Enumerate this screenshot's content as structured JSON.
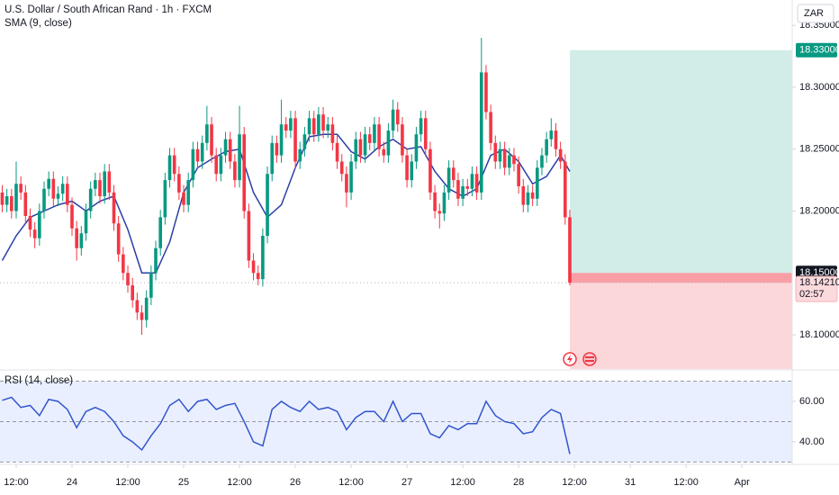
{
  "chart_data": [
    {
      "type": "candlestick",
      "title": "U.S. Dollar / South African Rand · 1h · FXCM",
      "currency": "ZAR",
      "up_color": "#089981",
      "down_color": "#f23645",
      "xlim": [
        -3.48,
        166.8
      ],
      "ylim": [
        18.0724,
        18.3705
      ],
      "yticks": [
        {
          "value": 18.35,
          "label": "18.35000"
        },
        {
          "value": 18.3,
          "label": "18.30000"
        },
        {
          "value": 18.25,
          "label": "18.25000"
        },
        {
          "value": 18.2,
          "label": "18.20000"
        },
        {
          "value": 18.1,
          "label": "18.10000"
        }
      ],
      "candles": {
        "x": [
          -3,
          -2,
          -1,
          0,
          1,
          2,
          3,
          4,
          5,
          6,
          7,
          8,
          9,
          10,
          11,
          12,
          13,
          14,
          15,
          16,
          17,
          18,
          19,
          20,
          21,
          22,
          23,
          24,
          25,
          26,
          27,
          28,
          29,
          30,
          31,
          32,
          33,
          34,
          35,
          36,
          37,
          38,
          39,
          40,
          41,
          42,
          43,
          44,
          45,
          46,
          47,
          48,
          49,
          50,
          51,
          52,
          53,
          54,
          55,
          56,
          57,
          58,
          59,
          60,
          61,
          62,
          63,
          64,
          65,
          66,
          67,
          68,
          69,
          70,
          71,
          72,
          73,
          74,
          75,
          76,
          77,
          78,
          79,
          80,
          81,
          82,
          83,
          84,
          85,
          86,
          87,
          88,
          89,
          90,
          91,
          92,
          93,
          94,
          95,
          96,
          97,
          98,
          99,
          100,
          101,
          102,
          103,
          104,
          105,
          106,
          107,
          108,
          109,
          110,
          111,
          112,
          113,
          114,
          115,
          116,
          117,
          118,
          119
        ],
        "open": [
          18.215,
          18.205,
          18.212,
          18.2,
          18.222,
          18.215,
          18.196,
          18.185,
          18.178,
          18.2,
          18.218,
          18.226,
          18.21,
          18.214,
          18.222,
          18.205,
          18.186,
          18.17,
          18.182,
          18.2,
          18.218,
          18.225,
          18.212,
          18.232,
          18.215,
          18.19,
          18.165,
          18.15,
          18.14,
          18.128,
          18.118,
          18.112,
          18.13,
          18.15,
          18.17,
          18.195,
          18.225,
          18.245,
          18.23,
          18.215,
          18.205,
          18.225,
          18.25,
          18.24,
          18.255,
          18.27,
          18.245,
          18.23,
          18.245,
          18.258,
          18.24,
          18.225,
          18.262,
          18.2,
          18.16,
          18.15,
          18.145,
          18.18,
          18.23,
          18.255,
          18.245,
          18.27,
          18.265,
          18.275,
          18.24,
          18.25,
          18.262,
          18.275,
          18.262,
          18.278,
          18.265,
          18.27,
          18.255,
          18.24,
          18.23,
          18.215,
          18.24,
          18.258,
          18.245,
          18.262,
          18.255,
          18.27,
          18.25,
          18.245,
          18.265,
          18.282,
          18.27,
          18.245,
          18.225,
          18.24,
          18.262,
          18.275,
          18.25,
          18.215,
          18.2,
          18.198,
          18.215,
          18.235,
          18.225,
          18.21,
          18.22,
          18.218,
          18.23,
          18.215,
          18.312,
          18.28,
          18.255,
          18.24,
          18.25,
          18.235,
          18.245,
          18.238,
          18.22,
          18.205,
          18.215,
          18.21,
          18.235,
          18.245,
          18.258,
          18.265,
          18.25,
          18.24,
          18.195
        ],
        "high": [
          18.221,
          18.218,
          18.218,
          18.24,
          18.228,
          18.221,
          18.202,
          18.191,
          18.206,
          18.224,
          18.232,
          18.232,
          18.22,
          18.228,
          18.228,
          18.211,
          18.192,
          18.188,
          18.206,
          18.224,
          18.231,
          18.231,
          18.238,
          18.238,
          18.221,
          18.196,
          18.171,
          18.156,
          18.146,
          18.134,
          18.124,
          18.136,
          18.156,
          18.176,
          18.201,
          18.231,
          18.251,
          18.251,
          18.236,
          18.221,
          18.231,
          18.256,
          18.256,
          18.261,
          18.285,
          18.276,
          18.251,
          18.251,
          18.264,
          18.264,
          18.246,
          18.285,
          18.268,
          18.206,
          18.166,
          18.156,
          18.186,
          18.236,
          18.261,
          18.261,
          18.29,
          18.276,
          18.281,
          18.281,
          18.256,
          18.268,
          18.281,
          18.281,
          18.284,
          18.284,
          18.276,
          18.276,
          18.261,
          18.246,
          18.236,
          18.246,
          18.264,
          18.264,
          18.268,
          18.268,
          18.276,
          18.276,
          18.256,
          18.271,
          18.29,
          18.288,
          18.276,
          18.251,
          18.246,
          18.268,
          18.281,
          18.281,
          18.256,
          18.221,
          18.206,
          18.221,
          18.241,
          18.241,
          18.231,
          18.226,
          18.226,
          18.236,
          18.236,
          18.34,
          18.318,
          18.286,
          18.261,
          18.256,
          18.256,
          18.251,
          18.251,
          18.244,
          18.226,
          18.221,
          18.221,
          18.241,
          18.251,
          18.264,
          18.275,
          18.271,
          18.256,
          18.246,
          18.201
        ],
        "low": [
          18.199,
          18.199,
          18.194,
          18.194,
          18.209,
          18.19,
          18.179,
          18.17,
          18.172,
          18.194,
          18.212,
          18.204,
          18.204,
          18.208,
          18.199,
          18.18,
          18.16,
          18.164,
          18.176,
          18.194,
          18.212,
          18.206,
          18.206,
          18.209,
          18.184,
          18.159,
          18.144,
          18.134,
          18.122,
          18.112,
          18.1,
          18.106,
          18.124,
          18.144,
          18.164,
          18.189,
          18.219,
          18.224,
          18.209,
          18.199,
          18.199,
          18.219,
          18.234,
          18.234,
          18.249,
          18.239,
          18.224,
          18.224,
          18.239,
          18.234,
          18.219,
          18.219,
          18.194,
          18.154,
          18.144,
          18.14,
          18.139,
          18.174,
          18.224,
          18.239,
          18.239,
          18.259,
          18.259,
          18.234,
          18.234,
          18.244,
          18.256,
          18.256,
          18.256,
          18.259,
          18.259,
          18.249,
          18.234,
          18.224,
          18.203,
          18.209,
          18.234,
          18.239,
          18.239,
          18.249,
          18.249,
          18.244,
          18.239,
          18.239,
          18.259,
          18.264,
          18.239,
          18.219,
          18.219,
          18.234,
          18.256,
          18.244,
          18.209,
          18.194,
          18.186,
          18.192,
          18.209,
          18.219,
          18.204,
          18.204,
          18.212,
          18.212,
          18.209,
          18.209,
          18.274,
          18.249,
          18.234,
          18.234,
          18.229,
          18.229,
          18.232,
          18.214,
          18.199,
          18.199,
          18.204,
          18.204,
          18.229,
          18.239,
          18.252,
          18.244,
          18.234,
          18.189,
          18.14
        ],
        "close": [
          18.205,
          18.212,
          18.2,
          18.222,
          18.215,
          18.196,
          18.185,
          18.178,
          18.2,
          18.218,
          18.226,
          18.21,
          18.214,
          18.222,
          18.205,
          18.186,
          18.17,
          18.182,
          18.2,
          18.218,
          18.225,
          18.212,
          18.232,
          18.215,
          18.19,
          18.165,
          18.15,
          18.14,
          18.128,
          18.118,
          18.112,
          18.13,
          18.15,
          18.17,
          18.195,
          18.225,
          18.245,
          18.23,
          18.215,
          18.205,
          18.225,
          18.25,
          18.24,
          18.255,
          18.27,
          18.245,
          18.23,
          18.245,
          18.258,
          18.24,
          18.225,
          18.262,
          18.2,
          18.16,
          18.15,
          18.145,
          18.18,
          18.23,
          18.255,
          18.245,
          18.27,
          18.265,
          18.275,
          18.24,
          18.25,
          18.262,
          18.275,
          18.262,
          18.278,
          18.265,
          18.27,
          18.255,
          18.24,
          18.23,
          18.215,
          18.24,
          18.258,
          18.245,
          18.262,
          18.255,
          18.27,
          18.25,
          18.245,
          18.265,
          18.282,
          18.27,
          18.245,
          18.225,
          18.24,
          18.262,
          18.275,
          18.25,
          18.215,
          18.2,
          18.198,
          18.215,
          18.235,
          18.225,
          18.21,
          18.22,
          18.218,
          18.23,
          18.215,
          18.312,
          18.28,
          18.255,
          18.24,
          18.25,
          18.235,
          18.245,
          18.238,
          18.22,
          18.205,
          18.215,
          18.21,
          18.235,
          18.245,
          18.258,
          18.265,
          18.25,
          18.24,
          18.195,
          18.1421
        ]
      },
      "series": [
        {
          "name": "SMA (9, close)",
          "color": "#2b3fa5",
          "x": [
            -3,
            0,
            3,
            6,
            9,
            12,
            15,
            18,
            21,
            24,
            27,
            30,
            33,
            36,
            39,
            42,
            45,
            48,
            51,
            54,
            57,
            60,
            63,
            66,
            69,
            72,
            75,
            78,
            81,
            84,
            87,
            90,
            93,
            96,
            99,
            102,
            105,
            108,
            111,
            114,
            117,
            119
          ],
          "values": [
            18.16,
            18.18,
            18.195,
            18.2,
            18.205,
            18.208,
            18.2,
            18.208,
            18.212,
            18.185,
            18.15,
            18.15,
            18.175,
            18.215,
            18.235,
            18.242,
            18.248,
            18.25,
            18.215,
            18.195,
            18.205,
            18.235,
            18.26,
            18.262,
            18.262,
            18.248,
            18.242,
            18.252,
            18.258,
            18.25,
            18.252,
            18.232,
            18.218,
            18.212,
            18.218,
            18.245,
            18.25,
            18.24,
            18.222,
            18.228,
            18.245,
            18.232
          ]
        }
      ],
      "position": {
        "start_x": 119,
        "entry": 18.15,
        "entry_label": "18.15000",
        "target": 18.33,
        "target_label": "18.33000"
      },
      "last_price": 18.1421,
      "last_price_label": "18.14210",
      "countdown": "02:57"
    },
    {
      "type": "line",
      "title": "RSI (14, close)",
      "xlim": [
        -3.48,
        166.8
      ],
      "ylim": [
        29.3,
        75.1
      ],
      "yticks": [
        {
          "value": 60,
          "label": "60.00"
        },
        {
          "value": 40,
          "label": "40.00"
        }
      ],
      "levels": [
        70,
        50,
        30
      ],
      "xticks": [
        {
          "value": 0,
          "label": "12:00"
        },
        {
          "value": 12,
          "label": "24"
        },
        {
          "value": 24,
          "label": "12:00"
        },
        {
          "value": 36,
          "label": "25"
        },
        {
          "value": 48,
          "label": "12:00"
        },
        {
          "value": 60,
          "label": "26"
        },
        {
          "value": 72,
          "label": "12:00"
        },
        {
          "value": 84,
          "label": "27"
        },
        {
          "value": 96,
          "label": "12:00"
        },
        {
          "value": 108,
          "label": "28"
        },
        {
          "value": 120,
          "label": "12:00"
        },
        {
          "value": 132,
          "label": "31"
        },
        {
          "value": 144,
          "label": "12:00"
        },
        {
          "value": 156,
          "label": "Apr"
        }
      ],
      "series": [
        {
          "color": "#3355cc",
          "x": [
            -3,
            -1,
            1,
            3,
            5,
            7,
            9,
            11,
            13,
            15,
            17,
            19,
            21,
            23,
            25,
            27,
            29,
            31,
            33,
            35,
            37,
            39,
            41,
            43,
            45,
            47,
            49,
            51,
            53,
            55,
            57,
            59,
            61,
            63,
            65,
            67,
            69,
            71,
            73,
            75,
            77,
            79,
            81,
            83,
            85,
            87,
            89,
            91,
            93,
            95,
            97,
            99,
            101,
            103,
            105,
            107,
            109,
            111,
            113,
            115,
            117,
            119
          ],
          "values": [
            60.5,
            62,
            57,
            58,
            53,
            61,
            60,
            56,
            47,
            55,
            57,
            55,
            50,
            43,
            40,
            36,
            43,
            49,
            58,
            61,
            55,
            60,
            61,
            56,
            58,
            59,
            50,
            40,
            38,
            56,
            60,
            57,
            55,
            60,
            56,
            57,
            55,
            46,
            52,
            55,
            55,
            50,
            60,
            50,
            54,
            54,
            44,
            42,
            48,
            46,
            49,
            49,
            60,
            53,
            50,
            49,
            44,
            45,
            52,
            56,
            54,
            34
          ]
        }
      ]
    }
  ]
}
